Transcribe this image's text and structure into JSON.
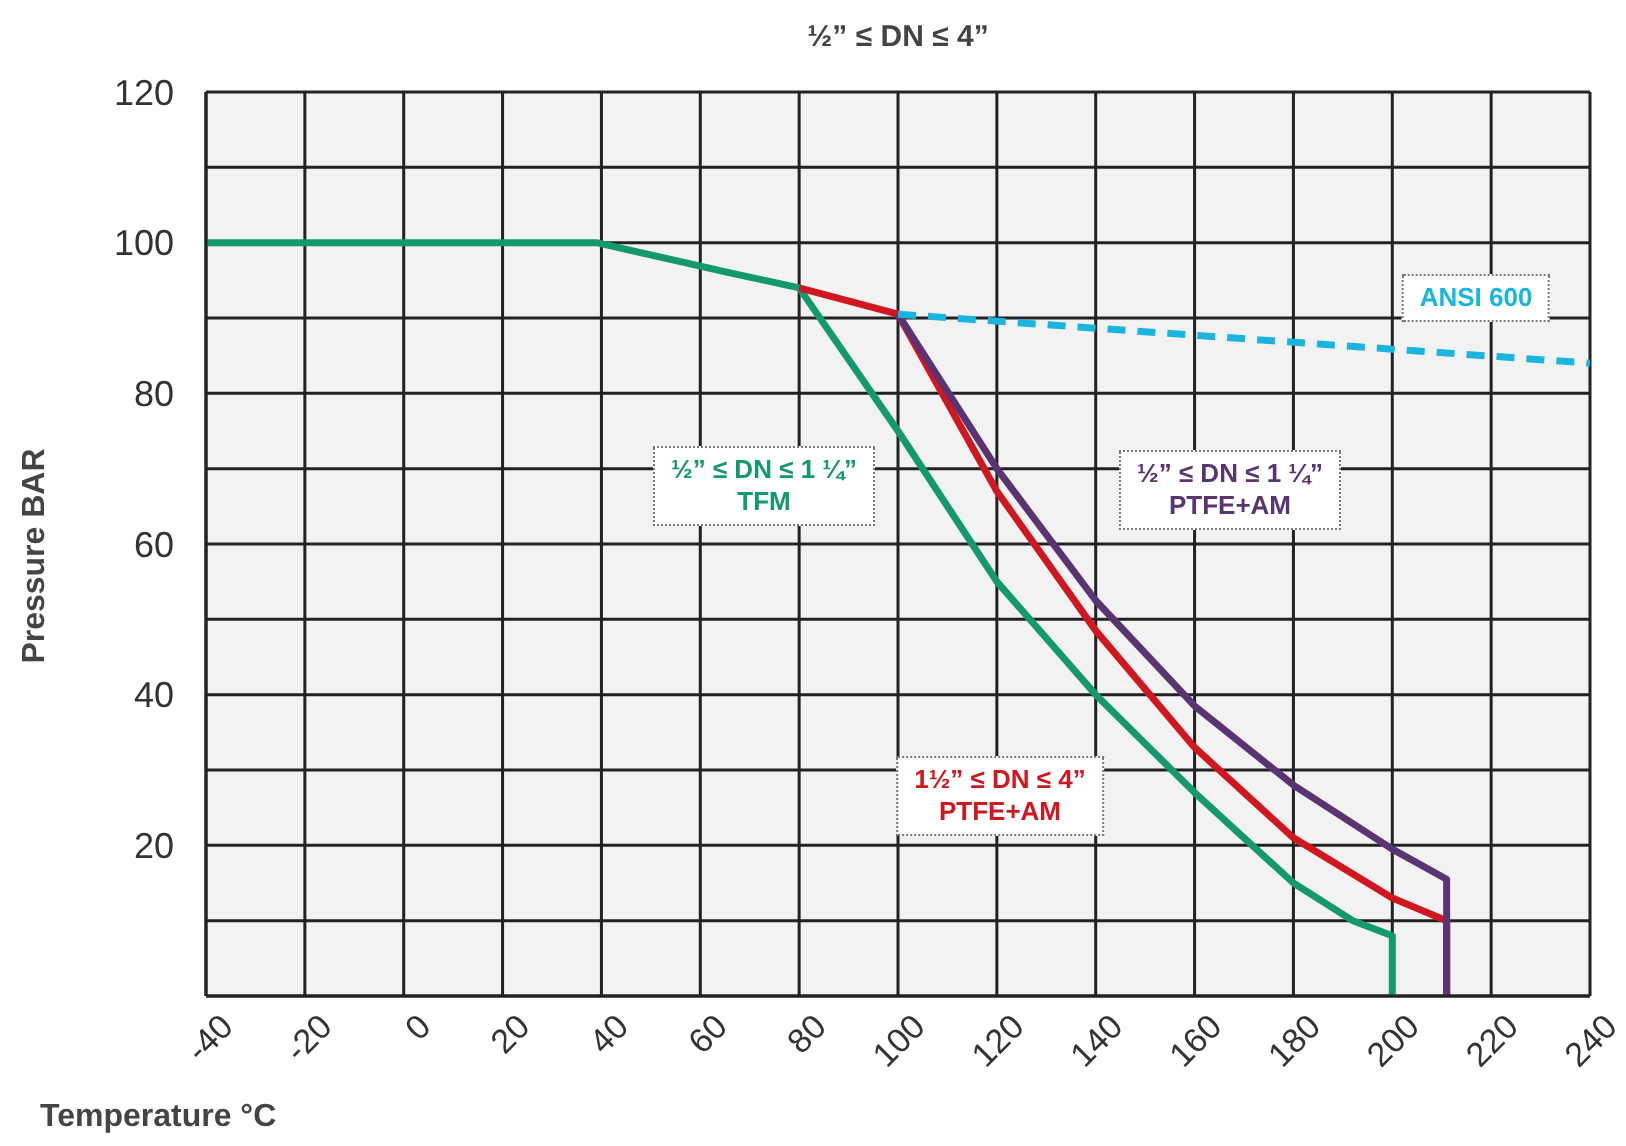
{
  "chart_data": {
    "type": "line",
    "title": "½” ≤ DN ≤ 4”",
    "xlabel": "Temperature °C",
    "ylabel": "Pressure BAR",
    "xlim": [
      -40,
      240
    ],
    "xticks": [
      -40,
      -20,
      0,
      20,
      40,
      60,
      80,
      100,
      120,
      140,
      160,
      180,
      200,
      220,
      240
    ],
    "ylim": [
      0,
      120
    ],
    "yticks": [
      {
        "value": 0,
        "label": null
      },
      {
        "value": 10,
        "label": null
      },
      20,
      {
        "value": 30,
        "label": null
      },
      40,
      {
        "value": 50,
        "label": null
      },
      60,
      {
        "value": 70,
        "label": null
      },
      80,
      {
        "value": 90,
        "label": null
      },
      100,
      {
        "value": 110,
        "label": null
      },
      120
    ],
    "grid": true,
    "legend": false,
    "marker": "none",
    "series": [
      {
        "name": "½” ≤ DN ≤ 1 ¼”\nTFM",
        "color": "#13996b",
        "line_style": "solid",
        "x": [
          -40,
          39,
          66,
          80,
          100,
          120,
          140,
          160,
          180,
          192,
          200,
          200
        ],
        "values": [
          100,
          100,
          96,
          94,
          75,
          55,
          40,
          27,
          15,
          10,
          8,
          0
        ]
      },
      {
        "name": "1½” ≤ DN ≤ 4”\nPTFE+AM",
        "color": "#d0171f",
        "line_style": "solid",
        "x": [
          80,
          100,
          120,
          140,
          160,
          180,
          200,
          211,
          211
        ],
        "values": [
          94,
          90.5,
          67,
          48.5,
          33,
          21,
          13,
          10,
          0
        ]
      },
      {
        "name": "½” ≤ DN ≤ 1 ¼”\nPTFE+AM",
        "color": "#5a3472",
        "line_style": "solid",
        "x": [
          100,
          120,
          140,
          160,
          180,
          200,
          211,
          211
        ],
        "values": [
          90.5,
          70,
          52.5,
          38.5,
          28,
          19.5,
          15.5,
          0
        ]
      },
      {
        "name": "ANSI 600",
        "color": "#1ab5df",
        "line_style": "dashed",
        "x": [
          100,
          240
        ],
        "values": [
          90.5,
          84
        ]
      }
    ]
  }
}
